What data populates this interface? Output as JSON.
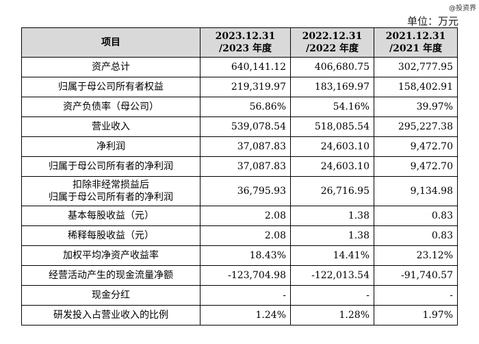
{
  "watermark": "@投资界",
  "unit": "单位：万元",
  "header": {
    "item": "项目",
    "col1": {
      "line1": "2023.12.31",
      "line2": "/2023 年度"
    },
    "col2": {
      "line1": "2022.12.31",
      "line2": "/2022 年度"
    },
    "col3": {
      "line1": "2021.12.31",
      "line2": "/2021 年度"
    }
  },
  "rows": [
    {
      "label": "资产总计",
      "v2023": "640,141.12",
      "v2022": "406,680.75",
      "v2021": "302,777.95"
    },
    {
      "label": "归属于母公司所有者权益",
      "v2023": "219,319.97",
      "v2022": "183,169.97",
      "v2021": "158,402.91"
    },
    {
      "label": "资产负债率（母公司）",
      "v2023": "56.86%",
      "v2022": "54.16%",
      "v2021": "39.97%"
    },
    {
      "label": "营业收入",
      "v2023": "539,078.54",
      "v2022": "518,085.54",
      "v2021": "295,227.38"
    },
    {
      "label": "净利润",
      "v2023": "37,087.83",
      "v2022": "24,603.10",
      "v2021": "9,472.70"
    },
    {
      "label": "归属于母公司所有者的净利润",
      "v2023": "37,087.83",
      "v2022": "24,603.10",
      "v2021": "9,472.70"
    },
    {
      "label_line1": "扣除非经常损益后",
      "label_line2": "归属于母公司所有者的净利润",
      "v2023": "36,795.93",
      "v2022": "26,716.95",
      "v2021": "9,134.98"
    },
    {
      "label": "基本每股收益（元）",
      "v2023": "2.08",
      "v2022": "1.38",
      "v2021": "0.83"
    },
    {
      "label": "稀释每股收益（元）",
      "v2023": "2.08",
      "v2022": "1.38",
      "v2021": "0.83"
    },
    {
      "label": "加权平均净资产收益率",
      "v2023": "18.43%",
      "v2022": "14.41%",
      "v2021": "23.12%"
    },
    {
      "label": "经营活动产生的现金流量净额",
      "v2023": "-123,704.98",
      "v2022": "-122,013.54",
      "v2021": "-91,740.57"
    },
    {
      "label": "现金分红",
      "v2023": "-",
      "v2022": "-",
      "v2021": "-"
    },
    {
      "label": "研发投入占营业收入的比例",
      "v2023": "1.24%",
      "v2022": "1.28%",
      "v2021": "1.97%"
    }
  ]
}
